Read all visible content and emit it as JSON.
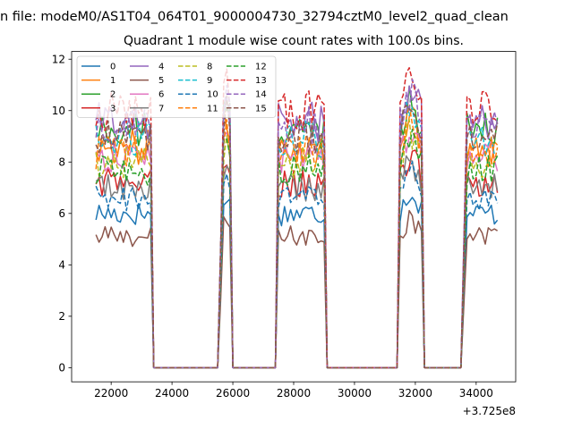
{
  "figure_title": "n file: modeM0/AS1T04_064T01_9000004730_32794cztM0_level2_quad_clean",
  "chart_data": {
    "type": "line",
    "title": "Quadrant 1 module wise count rates with 100.0s bins.",
    "xlabel": "",
    "ylabel": "",
    "x_offset_label": "+3.725e8",
    "xlim": [
      20700,
      35300
    ],
    "ylim": [
      -0.55,
      12.3
    ],
    "x_ticks": [
      22000,
      24000,
      26000,
      28000,
      30000,
      32000,
      34000
    ],
    "x_tick_labels": [
      "22000",
      "24000",
      "26000",
      "28000",
      "30000",
      "32000",
      "34000"
    ],
    "y_ticks": [
      0,
      2,
      4,
      6,
      8,
      10,
      12
    ],
    "y_tick_labels": [
      "0",
      "2",
      "4",
      "6",
      "8",
      "10",
      "12"
    ],
    "grid": false,
    "legend": "top-left",
    "legend_columns": 4,
    "time_range": [
      21500,
      34700
    ],
    "bin_size_s": 100,
    "active_intervals": [
      [
        21500,
        23300
      ],
      [
        25600,
        25950
      ],
      [
        27450,
        29050
      ],
      [
        31450,
        32250
      ],
      [
        33600,
        34700
      ]
    ],
    "series": [
      {
        "name": "0",
        "color": "#1f77b4",
        "dash": "solid",
        "level": 6.0
      },
      {
        "name": "1",
        "color": "#ff7f0e",
        "dash": "solid",
        "level": 8.6
      },
      {
        "name": "2",
        "color": "#2ca02c",
        "dash": "solid",
        "level": 9.2
      },
      {
        "name": "3",
        "color": "#d62728",
        "dash": "solid",
        "level": 7.2
      },
      {
        "name": "4",
        "color": "#9467bd",
        "dash": "solid",
        "level": 9.6
      },
      {
        "name": "5",
        "color": "#8c564b",
        "dash": "solid",
        "level": 5.1
      },
      {
        "name": "6",
        "color": "#e377c2",
        "dash": "solid",
        "level": 8.2
      },
      {
        "name": "7",
        "color": "#7f7f7f",
        "dash": "solid",
        "level": 7.0
      },
      {
        "name": "8",
        "color": "#bcbd22",
        "dash": "dashed",
        "level": 8.0
      },
      {
        "name": "9",
        "color": "#17becf",
        "dash": "dashed",
        "level": 8.9
      },
      {
        "name": "10",
        "color": "#1f77b4",
        "dash": "dashed",
        "level": 6.6
      },
      {
        "name": "11",
        "color": "#ff7f0e",
        "dash": "dashed",
        "level": 8.4
      },
      {
        "name": "12",
        "color": "#2ca02c",
        "dash": "dashed",
        "level": 7.7
      },
      {
        "name": "13",
        "color": "#d62728",
        "dash": "dashed",
        "level": 10.0
      },
      {
        "name": "14",
        "color": "#9467bd",
        "dash": "dashed",
        "level": 9.4
      },
      {
        "name": "15",
        "color": "#8c564b",
        "dash": "dashed",
        "level": 9.0
      }
    ]
  }
}
